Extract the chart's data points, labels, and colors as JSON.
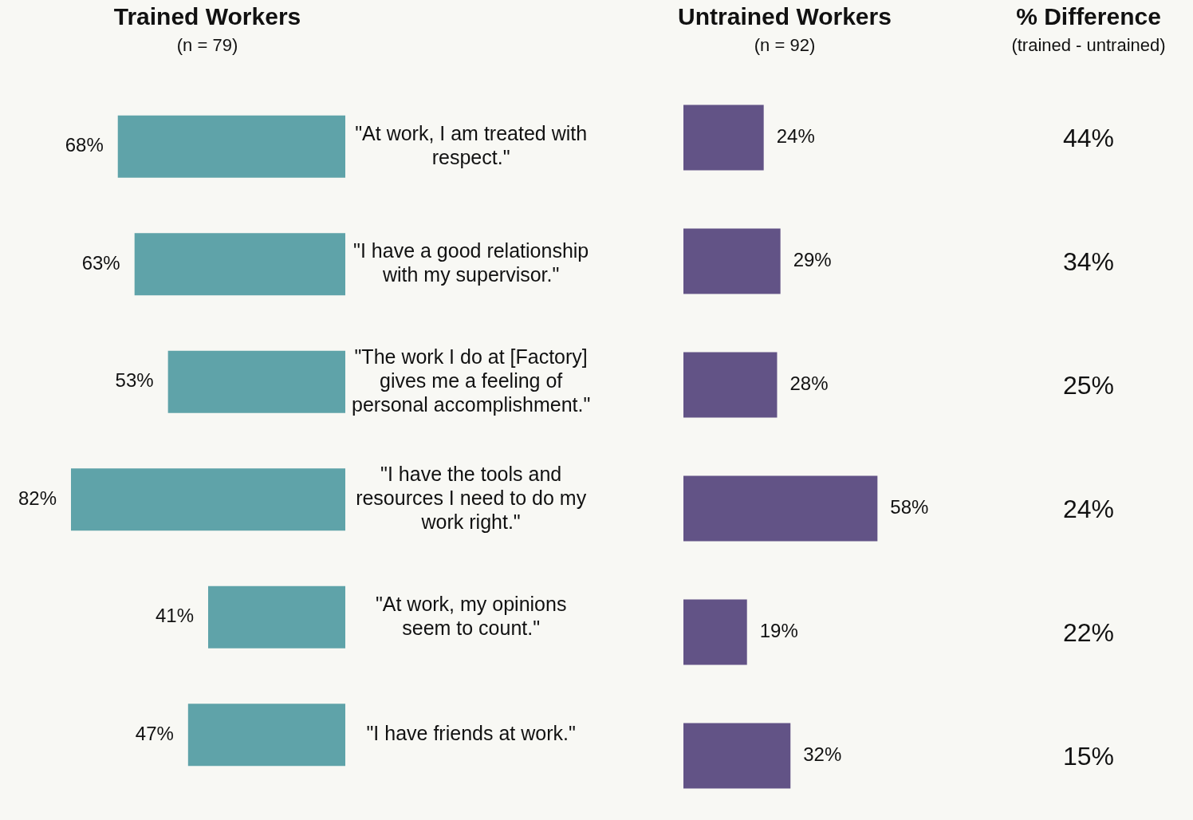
{
  "chart_data": [
    {
      "type": "bar",
      "orientation": "horizontal",
      "title": "Trained Workers",
      "subtitle": "(n = 79)",
      "categories": [
        "\"At work, I am treated with respect.\"",
        "\"I have a good relationship with my supervisor.\"",
        "\"The work I do at [Factory] gives me a feeling of personal accomplishment.\"",
        "\"I have the tools and resources I need to do my work right.\"",
        "\"At work, my opinions seem to count.\"",
        "\"I have friends at work.\""
      ],
      "values": [
        68,
        63,
        53,
        82,
        41,
        47
      ],
      "value_labels": [
        "68%",
        "63%",
        "53%",
        "82%",
        "41%",
        "47%"
      ],
      "color": "#5fa3a9",
      "tick_labels": "y"
    },
    {
      "type": "bar",
      "orientation": "horizontal",
      "title": "Untrained Workers",
      "subtitle": "(n = 92)",
      "categories": [
        null,
        null,
        null,
        null,
        null,
        null
      ],
      "values": [
        24,
        29,
        28,
        58,
        19,
        32
      ],
      "value_labels": [
        "24%",
        "29%",
        "28%",
        "58%",
        "19%",
        "32%"
      ],
      "color": "#625386",
      "tick_labels": false
    },
    {
      "type": "other",
      "title": "% Difference",
      "subtitle": "(trained - untrained)",
      "categories": [
        null,
        null,
        null,
        null,
        null,
        null
      ],
      "values": [
        44,
        34,
        25,
        24,
        22,
        15
      ],
      "value_labels": [
        "44%",
        "34%",
        "25%",
        "24%",
        "22%",
        "15%"
      ]
    }
  ]
}
